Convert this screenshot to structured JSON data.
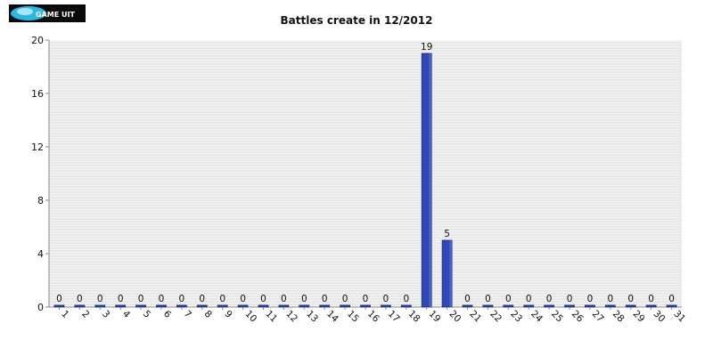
{
  "logo": {
    "text": "GAME UIT"
  },
  "chart_data": {
    "type": "bar",
    "title": "Battles create in 12/2012",
    "xlabel": "",
    "ylabel": "",
    "ylim": [
      0,
      20
    ],
    "yticks": [
      0,
      4,
      8,
      12,
      16,
      20
    ],
    "categories": [
      "1",
      "2",
      "3",
      "4",
      "5",
      "6",
      "7",
      "8",
      "9",
      "10",
      "11",
      "12",
      "13",
      "14",
      "15",
      "16",
      "17",
      "18",
      "19",
      "20",
      "21",
      "22",
      "23",
      "24",
      "25",
      "26",
      "27",
      "28",
      "29",
      "30",
      "31"
    ],
    "values": [
      0,
      0,
      0,
      0,
      0,
      0,
      0,
      0,
      0,
      0,
      0,
      0,
      0,
      0,
      0,
      0,
      0,
      0,
      19,
      5,
      0,
      0,
      0,
      0,
      0,
      0,
      0,
      0,
      0,
      0,
      0
    ],
    "bar_color": "#2f48b5",
    "bar_edge_color": "#1a2a7a",
    "grid": true,
    "legend": "none"
  }
}
